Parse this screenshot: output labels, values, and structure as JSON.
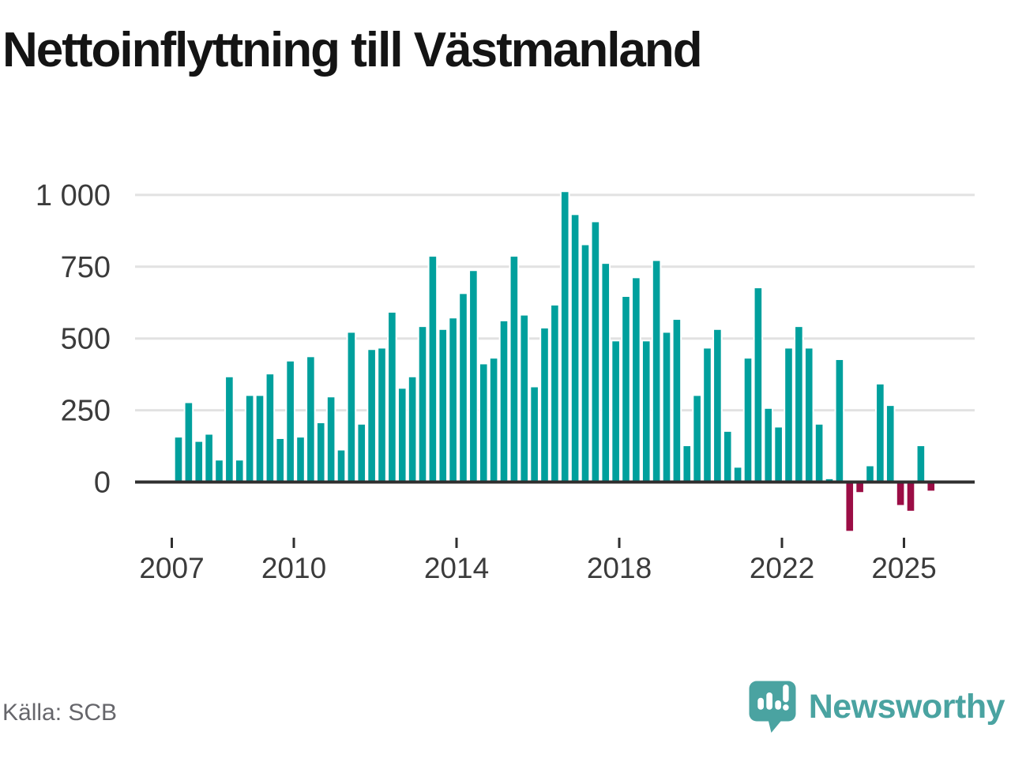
{
  "title": "Nettoinflyttning till Västmanland",
  "source": "Källa: SCB",
  "brand": {
    "name": "Newsworthy",
    "color": "#4aa3a1"
  },
  "colors": {
    "positive": "#00a09d",
    "negative": "#9b0d45",
    "axis": "#2f2f2f",
    "grid": "#e2e2e2",
    "tick_label": "#3b3b3b",
    "title": "#141414",
    "source": "#66666b"
  },
  "chart_data": {
    "type": "bar",
    "title": "Nettoinflyttning till Västmanland",
    "xlabel": "",
    "ylabel": "",
    "grid": true,
    "ylim": [
      -200,
      1050
    ],
    "yticks": [
      0,
      250,
      500,
      750,
      1000
    ],
    "ytick_labels": [
      "0",
      "250",
      "500",
      "750",
      "1 000"
    ],
    "xtick_years": [
      2007,
      2010,
      2014,
      2018,
      2022,
      2025
    ],
    "x": [
      "2007 Q1",
      "2007 Q2",
      "2007 Q3",
      "2007 Q4",
      "2008 Q1",
      "2008 Q2",
      "2008 Q3",
      "2008 Q4",
      "2009 Q1",
      "2009 Q2",
      "2009 Q3",
      "2009 Q4",
      "2010 Q1",
      "2010 Q2",
      "2010 Q3",
      "2010 Q4",
      "2011 Q1",
      "2011 Q2",
      "2011 Q3",
      "2011 Q4",
      "2012 Q1",
      "2012 Q2",
      "2012 Q3",
      "2012 Q4",
      "2013 Q1",
      "2013 Q2",
      "2013 Q3",
      "2013 Q4",
      "2014 Q1",
      "2014 Q2",
      "2014 Q3",
      "2014 Q4",
      "2015 Q1",
      "2015 Q2",
      "2015 Q3",
      "2015 Q4",
      "2016 Q1",
      "2016 Q2",
      "2016 Q3",
      "2016 Q4",
      "2017 Q1",
      "2017 Q2",
      "2017 Q3",
      "2017 Q4",
      "2018 Q1",
      "2018 Q2",
      "2018 Q3",
      "2018 Q4",
      "2019 Q1",
      "2019 Q2",
      "2019 Q3",
      "2019 Q4",
      "2020 Q1",
      "2020 Q2",
      "2020 Q3",
      "2020 Q4",
      "2021 Q1",
      "2021 Q2",
      "2021 Q3",
      "2021 Q4",
      "2022 Q1",
      "2022 Q2",
      "2022 Q3",
      "2022 Q4",
      "2023 Q1",
      "2023 Q2",
      "2023 Q3",
      "2023 Q4",
      "2024 Q1",
      "2024 Q2",
      "2024 Q3",
      "2024 Q4",
      "2025 Q1",
      "2025 Q2",
      "2025 Q3"
    ],
    "values": [
      155,
      275,
      140,
      165,
      75,
      365,
      75,
      300,
      300,
      375,
      150,
      420,
      155,
      435,
      205,
      295,
      110,
      520,
      200,
      460,
      465,
      590,
      325,
      365,
      540,
      785,
      530,
      570,
      655,
      735,
      410,
      430,
      560,
      785,
      580,
      330,
      535,
      615,
      1010,
      930,
      825,
      905,
      760,
      490,
      645,
      710,
      490,
      770,
      520,
      565,
      125,
      300,
      465,
      530,
      175,
      50,
      430,
      675,
      255,
      190,
      465,
      540,
      465,
      200,
      10,
      425,
      -170,
      -35,
      55,
      340,
      265,
      -80,
      -100,
      125,
      -30
    ]
  }
}
